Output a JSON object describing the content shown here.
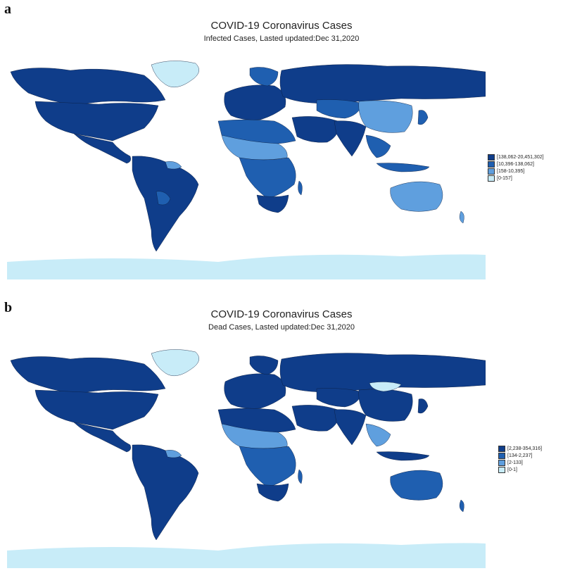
{
  "colors": {
    "level4": "#0f3d8a",
    "level3": "#1f5fb0",
    "level2": "#5f9fde",
    "level1": "#c8ecf8",
    "water": "#ffffff",
    "border": "#0a1a3a"
  },
  "panels": [
    {
      "letter": "a",
      "title": "COVID-19 Coronavirus Cases",
      "subtitle": "Infected Cases, Lasted updated:Dec 31,2020",
      "legend": [
        {
          "label": "[138,062-20,451,302]",
          "level": "level4"
        },
        {
          "label": "[10,396-138,062]",
          "level": "level3"
        },
        {
          "label": "[158-10,395]",
          "level": "level2"
        },
        {
          "label": "[0-157]",
          "level": "level1"
        }
      ]
    },
    {
      "letter": "b",
      "title": "COVID-19 Coronavirus Cases",
      "subtitle": "Dead Cases, Lasted updated:Dec 31,2020",
      "legend": [
        {
          "label": "[2,238-354,316]",
          "level": "level4"
        },
        {
          "label": "[134-2,237]",
          "level": "level3"
        },
        {
          "label": "[2-133]",
          "level": "level2"
        },
        {
          "label": "[0-1]",
          "level": "level1"
        }
      ]
    }
  ]
}
